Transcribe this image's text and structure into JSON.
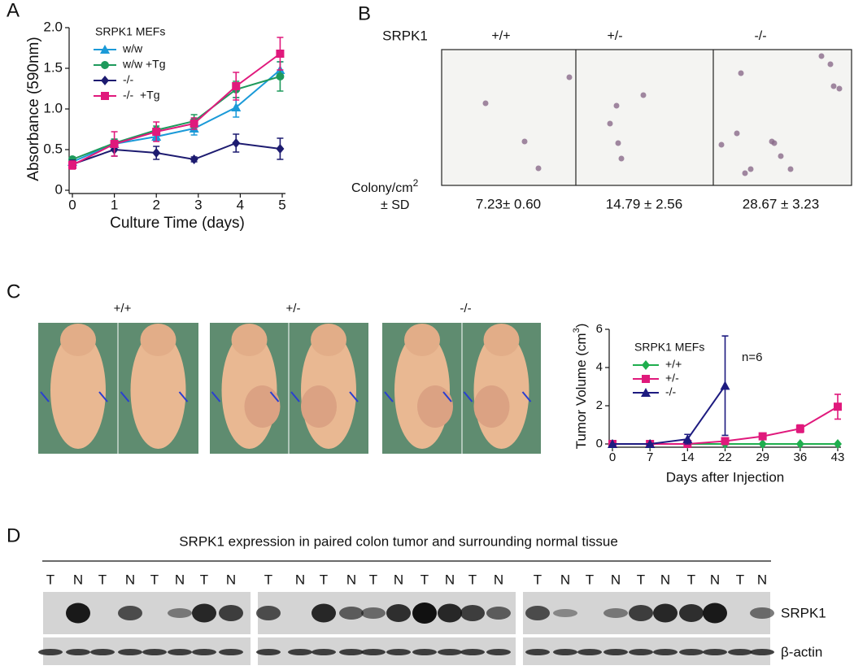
{
  "chart_data": [
    {
      "type": "line",
      "panel_label": "A",
      "y_label": "Absorbance (590nm)",
      "x_label": "Culture Time (days)",
      "legend_title": "SRPK1 MEFs",
      "x": [
        0,
        1,
        2,
        2.9,
        3.9,
        4.95
      ],
      "xlim": [
        0,
        5
      ],
      "xticks": [
        0,
        1,
        2,
        3,
        4,
        5
      ],
      "ylim": [
        0,
        2
      ],
      "yticks": [
        0,
        0.5,
        {
          "value": 1,
          "label": "1.0"
        },
        1.5,
        {
          "value": 2,
          "label": "2.0"
        }
      ],
      "series": [
        {
          "name": "w/w",
          "color": "#1b9ad8",
          "marker": "triangle",
          "values": [
            0.35,
            0.57,
            0.66,
            0.76,
            1.02,
            1.48
          ],
          "errors": [
            0.03,
            0.05,
            0.05,
            0.08,
            0.12,
            0.1
          ]
        },
        {
          "name": "w/w +Tg",
          "color": "#1e9a5c",
          "marker": "circle",
          "values": [
            0.38,
            0.58,
            0.74,
            0.85,
            1.24,
            1.4
          ],
          "errors": [
            0.03,
            0.05,
            0.05,
            0.08,
            0.1,
            0.18
          ]
        },
        {
          "name": "-/-",
          "color": "#1d1b70",
          "marker": "diamond",
          "values": [
            0.32,
            0.5,
            0.46,
            0.38,
            0.58,
            0.51
          ],
          "errors": [
            0.05,
            0.08,
            0.08,
            0.03,
            0.11,
            0.13
          ]
        },
        {
          "name": "-/-  +Tg",
          "color": "#e0197c",
          "marker": "square",
          "values": [
            0.31,
            0.57,
            0.72,
            0.82,
            1.28,
            1.68
          ],
          "errors": [
            0.05,
            0.15,
            0.12,
            0.07,
            0.17,
            0.2
          ]
        }
      ]
    },
    {
      "type": "line",
      "y_label": "Tumor Volume (cm",
      "y_label_sup": "3",
      "y_label_end": ")",
      "x_label": "Days after Injection",
      "legend_title": "SRPK1 MEFs",
      "annotation": "n=6",
      "categories": [
        "0",
        "7",
        "14",
        "22",
        "29",
        "36",
        "43"
      ],
      "ylim": [
        0,
        6
      ],
      "yticks": [
        0,
        2,
        4,
        6
      ],
      "series": [
        {
          "name": "+/+",
          "color": "#1fae4e",
          "marker": "diamond",
          "values": [
            0,
            0,
            0,
            0,
            0,
            0,
            0
          ],
          "errors": [
            null,
            null,
            null,
            null,
            null,
            null,
            null
          ]
        },
        {
          "name": "+/-",
          "color": "#e0197c",
          "marker": "square",
          "values": [
            0,
            0,
            0,
            0.15,
            0.4,
            0.8,
            1.95
          ],
          "errors": [
            null,
            null,
            null,
            0.05,
            0.05,
            0.2,
            0.65
          ]
        },
        {
          "name": "-/-",
          "color": "#1d1b80",
          "marker": "triangle",
          "values": [
            0,
            0,
            0.25,
            3.05,
            null,
            null,
            null
          ],
          "errors": [
            null,
            null,
            0.25,
            2.6,
            null,
            null,
            null
          ]
        }
      ]
    }
  ],
  "panel_b": {
    "panel_label": "B",
    "gene": "SRPK1",
    "genotypes": [
      "+/+",
      "+/-",
      "-/-"
    ],
    "row_label": "Colony/cm",
    "row_label_sup": "2",
    "row_label_2": "± SD",
    "colony_counts": [
      "7.23± 0.60",
      "14.79 ± 2.56",
      "28.67 ± 3.23"
    ]
  },
  "panel_c": {
    "panel_label": "C",
    "genotypes": [
      "+/+",
      "+/-",
      "-/-"
    ]
  },
  "panel_d": {
    "panel_label": "D",
    "title": "SRPK1 expression in paired colon tumor and surrounding normal tissue",
    "lane_groups": [
      [
        "T",
        "N",
        "T",
        "N",
        "T",
        "N",
        "T",
        "N"
      ],
      [
        "T",
        "N",
        "T",
        "N",
        "T",
        "N",
        "T",
        "N",
        "T",
        "N"
      ],
      [
        "T",
        "N",
        "T",
        "N",
        "T",
        "N",
        "T",
        "N",
        "T",
        "N"
      ]
    ],
    "row_labels": [
      "SRPK1",
      "β-actin"
    ]
  }
}
